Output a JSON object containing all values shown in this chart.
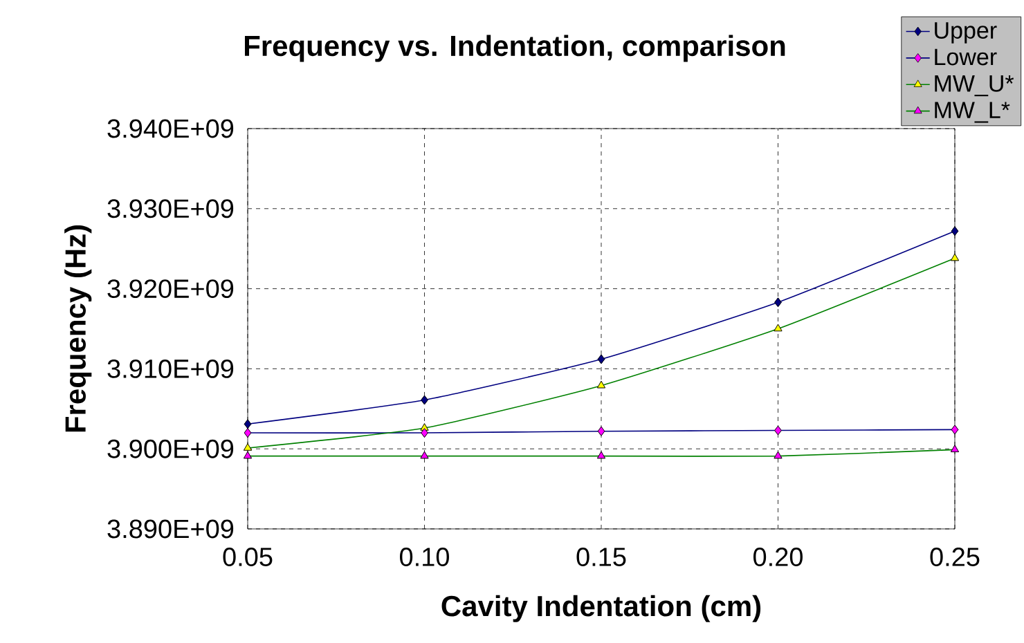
{
  "chart_data": {
    "type": "line",
    "title": "Frequency vs. Indentation, comparison",
    "xlabel": "Cavity Indentation (cm)",
    "ylabel": "Frequency (Hz)",
    "x": [
      0.05,
      0.1,
      0.15,
      0.2,
      0.25
    ],
    "series": [
      {
        "name": "Upper",
        "color": "#000080",
        "colors": [
          "#000080",
          "#000080",
          "#000080",
          "#000080",
          "#000080"
        ],
        "marker": "diamond",
        "values": [
          3903100000,
          3906100000,
          3911200000,
          3918300000,
          3927200000
        ]
      },
      {
        "name": "Lower",
        "color": "#000080",
        "colors": [
          "#ff00ff",
          "#ff00ff",
          "#ff00ff",
          "#ff00ff",
          "#ff00ff"
        ],
        "marker": "diamond",
        "values": [
          3902000000,
          3902000000,
          3902200000,
          3902300000,
          3902400000
        ]
      },
      {
        "name": "MW_U*",
        "color": "#008000",
        "colors": [
          "#ffff00",
          "#ffff00",
          "#ffff00",
          "#ffff00",
          "#ffff00"
        ],
        "marker": "triangle",
        "values": [
          3900100000,
          3902600000,
          3907900000,
          3915000000,
          3923800000
        ]
      },
      {
        "name": "MW_L*",
        "color": "#008000",
        "colors": [
          "#ff00ff",
          "#ff00ff",
          "#ff00ff",
          "#ff00ff",
          "#ff00ff"
        ],
        "marker": "triangle",
        "values": [
          3899100000,
          3899100000,
          3899100000,
          3899100000,
          3899900000
        ]
      }
    ],
    "xlim": [
      0.05,
      0.25
    ],
    "xticks": [
      {
        "value": 0.05,
        "label": "0.05"
      },
      {
        "value": 0.1,
        "label": "0.10"
      },
      {
        "value": 0.15,
        "label": "0.15"
      },
      {
        "value": 0.2,
        "label": "0.20"
      },
      {
        "value": 0.25,
        "label": "0.25"
      }
    ],
    "ylim": [
      3890000000,
      3940000000
    ],
    "yticks": [
      {
        "value": 3890000000,
        "label": "3.890E+09"
      },
      {
        "value": 3900000000,
        "label": "3.900E+09"
      },
      {
        "value": 3910000000,
        "label": "3.910E+09"
      },
      {
        "value": 3920000000,
        "label": "3.920E+09"
      },
      {
        "value": 3930000000,
        "label": "3.930E+09"
      },
      {
        "value": 3940000000,
        "label": "3.940E+09"
      }
    ],
    "grid": true,
    "line_style": "solid",
    "legend": "top right"
  }
}
